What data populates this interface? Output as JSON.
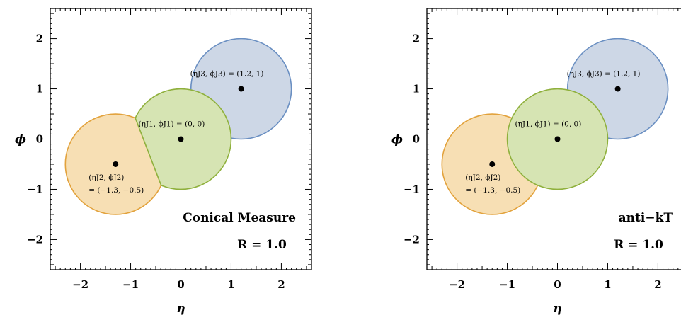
{
  "chart_data": [
    {
      "type": "scatter",
      "title": "",
      "xlabel": "η",
      "ylabel": "ϕ",
      "xlim": [
        -2.6,
        2.6
      ],
      "ylim": [
        -2.6,
        2.6
      ],
      "xticks": [
        -2,
        -1,
        0,
        1,
        2
      ],
      "yticks": [
        -2,
        -1,
        0,
        1,
        2
      ],
      "xtick_labels": [
        "−2",
        "−1",
        "0",
        "1",
        "2"
      ],
      "ytick_labels": [
        "−2",
        "−1",
        "0",
        "1",
        "2"
      ],
      "grid": false,
      "method_label": "Conical Measure",
      "r_label": "R = 1.0",
      "radius": 1.0,
      "jets": [
        {
          "name": "J1",
          "x": 0,
          "y": 0,
          "color": "#d6e4b3",
          "edge": "#8fb03c",
          "label": "(ηJ1, ϕJ1) = (0, 0)"
        },
        {
          "name": "J2",
          "x": -1.3,
          "y": -0.5,
          "color": "#f7dfb4",
          "edge": "#e2a23c",
          "label_line1": "(ηJ2, ϕJ2)",
          "label_line2": "= (−1.3, −0.5)"
        },
        {
          "name": "J3",
          "x": 1.2,
          "y": 1,
          "color": "#cdd7e6",
          "edge": "#6a8fc2",
          "label": "(ηJ3, ϕJ3) = (1.2, 1)"
        }
      ]
    },
    {
      "type": "scatter",
      "title": "",
      "xlabel": "η",
      "ylabel": "ϕ",
      "xlim": [
        -2.6,
        2.6
      ],
      "ylim": [
        -2.6,
        2.6
      ],
      "xticks": [
        -2,
        -1,
        0,
        1,
        2
      ],
      "yticks": [
        -2,
        -1,
        0,
        1,
        2
      ],
      "xtick_labels": [
        "−2",
        "−1",
        "0",
        "1",
        "2"
      ],
      "ytick_labels": [
        "−2",
        "−1",
        "0",
        "1",
        "2"
      ],
      "grid": false,
      "method_label": "anti−kT",
      "r_label": "R = 1.0",
      "radius": 1.0,
      "jets": [
        {
          "name": "J1",
          "x": 0,
          "y": 0,
          "color": "#d6e4b3",
          "edge": "#8fb03c",
          "label": "(ηJ1, ϕJ1) = (0, 0)"
        },
        {
          "name": "J2",
          "x": -1.3,
          "y": -0.5,
          "color": "#f7dfb4",
          "edge": "#e2a23c",
          "label_line1": "(ηJ2, ϕJ2)",
          "label_line2": "= (−1.3, −0.5)"
        },
        {
          "name": "J3",
          "x": 1.2,
          "y": 1,
          "color": "#cdd7e6",
          "edge": "#6a8fc2",
          "label": "(ηJ3, ϕJ3) = (1.2, 1)"
        }
      ]
    }
  ]
}
